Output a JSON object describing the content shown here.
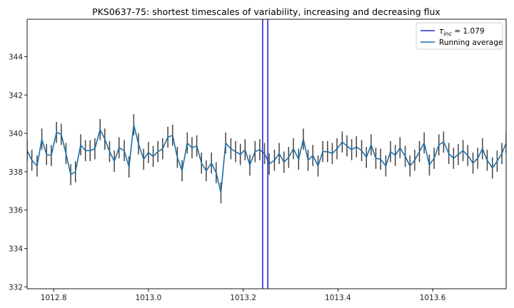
{
  "chart_data": {
    "type": "line",
    "title": "PKS0637-75: shortest timescales of variability, increasing and decreasing flux",
    "xlabel": "",
    "ylabel": "",
    "xlim": [
      1012.744,
      1013.755
    ],
    "ylim": [
      331.9,
      345.95
    ],
    "xticks": [
      1012.8,
      1013.0,
      1013.2,
      1013.4,
      1013.6
    ],
    "xtick_labels": [
      "1012.8",
      "1013.0",
      "1013.2",
      "1013.4",
      "1013.6"
    ],
    "yticks": [
      332,
      334,
      336,
      338,
      340,
      342,
      344
    ],
    "ytick_labels": [
      "332",
      "334",
      "336",
      "338",
      "340",
      "342",
      "344"
    ],
    "grid": false,
    "legend_position": "top-right",
    "vlines": {
      "color": "#2b2bd0",
      "label": "τ_inc = 1.079",
      "legend_main": "τ",
      "legend_sub": "inc",
      "legend_rest": " = 1.079",
      "x": [
        1013.241,
        1013.252
      ]
    },
    "running_average": {
      "name": "Running average",
      "color": "#1f6fa8",
      "errorbar_color": "#444444",
      "x": [
        1012.744,
        1012.754,
        1012.765,
        1012.775,
        1012.785,
        1012.795,
        1012.806,
        1012.816,
        1012.826,
        1012.836,
        1012.846,
        1012.857,
        1012.867,
        1012.877,
        1012.887,
        1012.898,
        1012.908,
        1012.918,
        1012.928,
        1012.938,
        1012.949,
        1012.959,
        1012.969,
        1012.979,
        1012.99,
        1013.0,
        1013.01,
        1013.02,
        1013.03,
        1013.041,
        1013.051,
        1013.061,
        1013.071,
        1013.082,
        1013.092,
        1013.102,
        1013.112,
        1013.122,
        1013.133,
        1013.143,
        1013.153,
        1013.163,
        1013.174,
        1013.184,
        1013.194,
        1013.204,
        1013.214,
        1013.225,
        1013.235,
        1013.245,
        1013.255,
        1013.266,
        1013.276,
        1013.286,
        1013.296,
        1013.306,
        1013.317,
        1013.327,
        1013.337,
        1013.347,
        1013.358,
        1013.368,
        1013.378,
        1013.388,
        1013.398,
        1013.409,
        1013.419,
        1013.429,
        1013.439,
        1013.45,
        1013.46,
        1013.47,
        1013.48,
        1013.49,
        1013.501,
        1013.511,
        1013.521,
        1013.531,
        1013.542,
        1013.552,
        1013.562,
        1013.572,
        1013.582,
        1013.593,
        1013.603,
        1013.613,
        1013.623,
        1013.634,
        1013.644,
        1013.654,
        1013.664,
        1013.674,
        1013.685,
        1013.695,
        1013.705,
        1013.715,
        1013.726,
        1013.736,
        1013.746,
        1013.755
      ],
      "y": [
        339.1,
        338.6,
        338.3,
        339.7,
        338.9,
        338.85,
        340.05,
        339.95,
        338.95,
        337.85,
        338.0,
        339.4,
        339.1,
        339.1,
        339.2,
        340.2,
        339.7,
        339.05,
        338.55,
        339.25,
        339.1,
        338.25,
        340.45,
        339.45,
        338.65,
        339.0,
        338.8,
        339.05,
        339.2,
        339.8,
        339.9,
        338.75,
        338.05,
        339.5,
        339.25,
        339.35,
        338.45,
        338.05,
        338.45,
        337.95,
        336.9,
        339.5,
        339.2,
        339.05,
        338.9,
        339.15,
        338.35,
        339.05,
        339.15,
        338.95,
        338.4,
        338.6,
        338.95,
        338.5,
        338.75,
        339.2,
        338.65,
        339.7,
        338.6,
        338.85,
        338.3,
        339.05,
        339.05,
        338.95,
        339.2,
        339.55,
        339.35,
        339.15,
        339.3,
        339.1,
        338.75,
        339.4,
        338.7,
        338.65,
        338.3,
        339.05,
        338.85,
        339.25,
        338.8,
        338.3,
        338.6,
        339.05,
        339.5,
        338.35,
        338.7,
        339.4,
        339.55,
        338.95,
        338.7,
        338.9,
        339.1,
        338.85,
        338.45,
        338.7,
        339.2,
        338.6,
        338.2,
        338.55,
        338.95,
        339.5
      ],
      "yerr": 0.55
    }
  }
}
